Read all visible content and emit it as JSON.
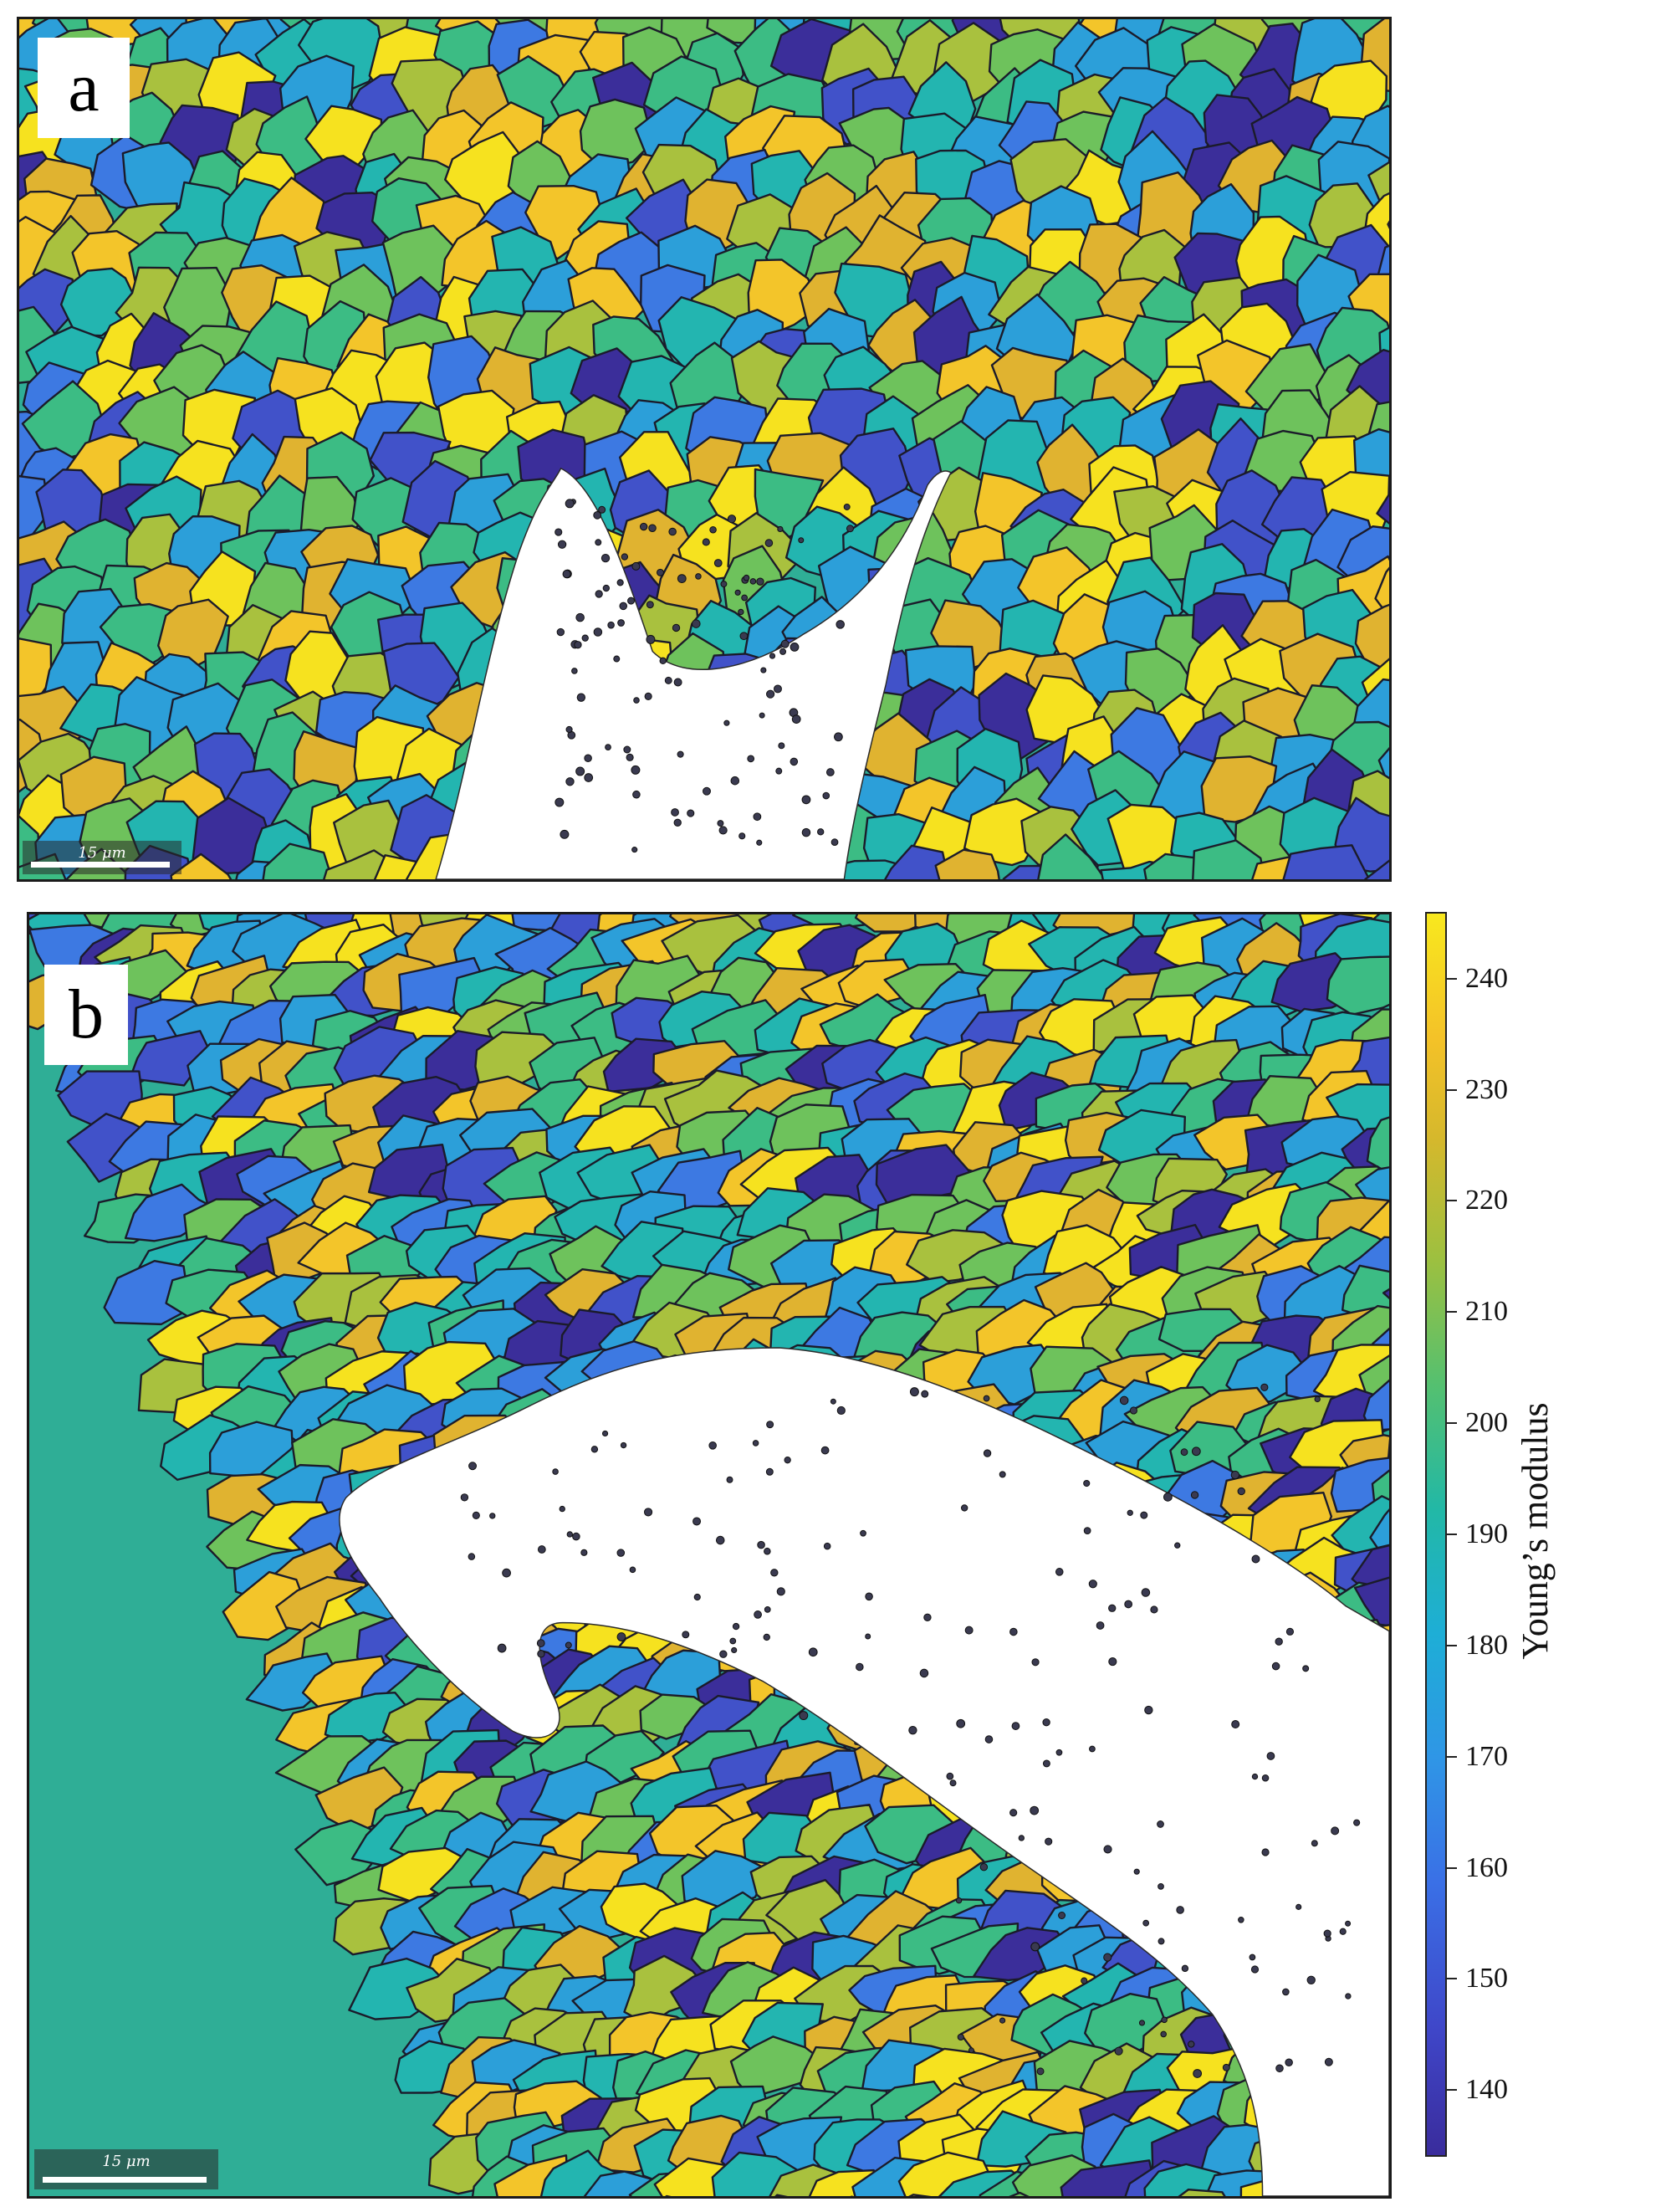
{
  "panels": [
    {
      "label": "a",
      "scale_bar": "15 μm"
    },
    {
      "label": "b",
      "scale_bar": "15 μm"
    }
  ],
  "colorbar": {
    "title": "Young’s modulus",
    "ticks": [
      "140",
      "150",
      "160",
      "170",
      "180",
      "190",
      "200",
      "210",
      "220",
      "230",
      "240"
    ],
    "range": [
      134,
      246
    ],
    "colors": [
      "#3a2c9c",
      "#3f46c8",
      "#3a70e6",
      "#2f96e6",
      "#1eaed6",
      "#22b8a6",
      "#54c070",
      "#9cc040",
      "#d6b82c",
      "#f4c228",
      "#f8e81e"
    ]
  },
  "palette": [
    "#3b2e9a",
    "#4152c9",
    "#3d79e2",
    "#2c9fd9",
    "#23b5b0",
    "#3cbc84",
    "#6ec25c",
    "#a9c13e",
    "#e0b330",
    "#f3c52a",
    "#f6e21f"
  ]
}
